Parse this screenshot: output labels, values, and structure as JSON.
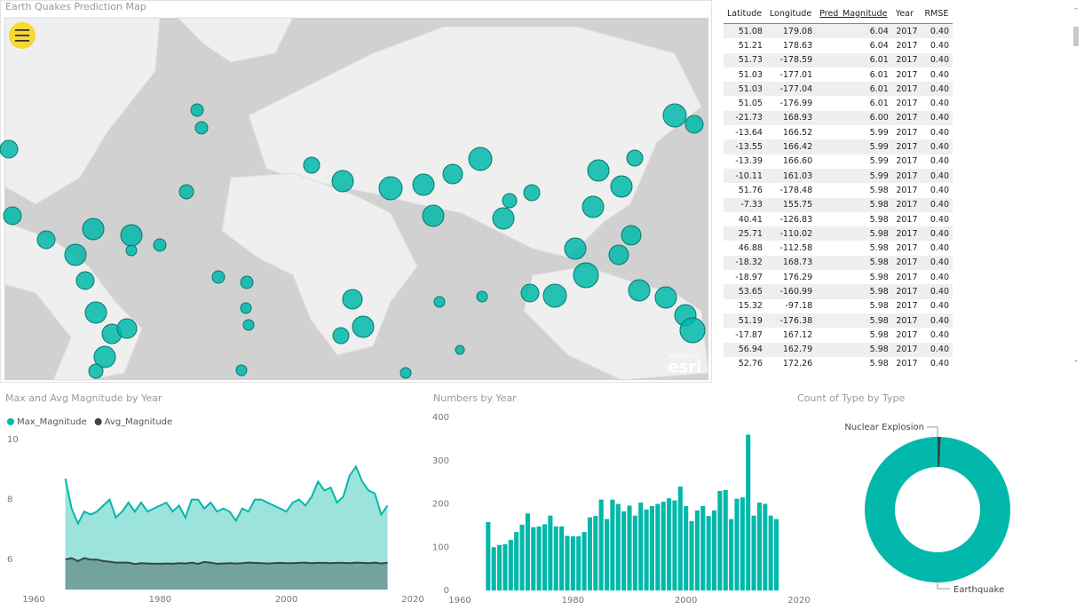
{
  "map": {
    "title": "Earth Quakes Prediction Map",
    "logo_caption": "POWERED BY",
    "logo": "esri"
  },
  "table": {
    "columns": [
      "Latitude",
      "Longitude",
      "Pred_Magnitude",
      "Year",
      "RMSE"
    ],
    "rows": [
      [
        "51.08",
        "179.08",
        "6.04",
        "2017",
        "0.40"
      ],
      [
        "51.21",
        "178.63",
        "6.04",
        "2017",
        "0.40"
      ],
      [
        "51.73",
        "-178.59",
        "6.01",
        "2017",
        "0.40"
      ],
      [
        "51.03",
        "-177.01",
        "6.01",
        "2017",
        "0.40"
      ],
      [
        "51.03",
        "-177.04",
        "6.01",
        "2017",
        "0.40"
      ],
      [
        "51.05",
        "-176.99",
        "6.01",
        "2017",
        "0.40"
      ],
      [
        "-21.73",
        "168.93",
        "6.00",
        "2017",
        "0.40"
      ],
      [
        "-13.64",
        "166.52",
        "5.99",
        "2017",
        "0.40"
      ],
      [
        "-13.55",
        "166.42",
        "5.99",
        "2017",
        "0.40"
      ],
      [
        "-13.39",
        "166.60",
        "5.99",
        "2017",
        "0.40"
      ],
      [
        "-10.11",
        "161.03",
        "5.99",
        "2017",
        "0.40"
      ],
      [
        "51.76",
        "-178.48",
        "5.98",
        "2017",
        "0.40"
      ],
      [
        "-7.33",
        "155.75",
        "5.98",
        "2017",
        "0.40"
      ],
      [
        "40.41",
        "-126.83",
        "5.98",
        "2017",
        "0.40"
      ],
      [
        "25.71",
        "-110.02",
        "5.98",
        "2017",
        "0.40"
      ],
      [
        "46.88",
        "-112.58",
        "5.98",
        "2017",
        "0.40"
      ],
      [
        "-18.32",
        "168.73",
        "5.98",
        "2017",
        "0.40"
      ],
      [
        "-18.97",
        "176.29",
        "5.98",
        "2017",
        "0.40"
      ],
      [
        "53.65",
        "-160.99",
        "5.98",
        "2017",
        "0.40"
      ],
      [
        "15.32",
        "-97.18",
        "5.98",
        "2017",
        "0.40"
      ],
      [
        "51.19",
        "-176.38",
        "5.98",
        "2017",
        "0.40"
      ],
      [
        "-17.87",
        "167.12",
        "5.98",
        "2017",
        "0.40"
      ],
      [
        "56.94",
        "162.79",
        "5.98",
        "2017",
        "0.40"
      ],
      [
        "52.76",
        "172.26",
        "5.98",
        "2017",
        "0.40"
      ]
    ]
  },
  "chart_data": [
    {
      "type": "area",
      "title": "Max and Avg Magnitude by Year",
      "x": [
        1965,
        1966,
        1967,
        1968,
        1969,
        1970,
        1971,
        1972,
        1973,
        1974,
        1975,
        1976,
        1977,
        1978,
        1979,
        1980,
        1981,
        1982,
        1983,
        1984,
        1985,
        1986,
        1987,
        1988,
        1989,
        1990,
        1991,
        1992,
        1993,
        1994,
        1995,
        1996,
        1997,
        1998,
        1999,
        2000,
        2001,
        2002,
        2003,
        2004,
        2005,
        2006,
        2007,
        2008,
        2009,
        2010,
        2011,
        2012,
        2013,
        2014,
        2015,
        2016
      ],
      "series": [
        {
          "name": "Max_Magnitude",
          "color": "#01b8aa",
          "fill": "#9ce3dc",
          "values": [
            8.7,
            7.7,
            7.2,
            7.6,
            7.5,
            7.6,
            7.8,
            8.0,
            7.4,
            7.6,
            7.9,
            7.6,
            7.9,
            7.6,
            7.7,
            7.8,
            7.9,
            7.6,
            7.8,
            7.4,
            8.0,
            8.0,
            7.7,
            7.9,
            7.6,
            7.7,
            7.6,
            7.3,
            7.7,
            7.6,
            8.0,
            8.0,
            7.9,
            7.8,
            7.7,
            7.6,
            7.9,
            8.0,
            7.8,
            8.1,
            8.6,
            8.3,
            8.4,
            7.9,
            8.1,
            8.8,
            9.1,
            8.6,
            8.3,
            8.2,
            7.5,
            7.8
          ]
        },
        {
          "name": "Avg_Magnitude",
          "color": "#374649",
          "fill": "#72a39e",
          "values": [
            6.0,
            6.05,
            5.95,
            6.05,
            6.0,
            6.0,
            5.95,
            5.93,
            5.9,
            5.9,
            5.9,
            5.85,
            5.88,
            5.87,
            5.86,
            5.86,
            5.87,
            5.86,
            5.88,
            5.87,
            5.9,
            5.86,
            5.92,
            5.9,
            5.86,
            5.87,
            5.88,
            5.87,
            5.88,
            5.9,
            5.89,
            5.88,
            5.87,
            5.88,
            5.89,
            5.88,
            5.88,
            5.89,
            5.9,
            5.88,
            5.89,
            5.89,
            5.88,
            5.89,
            5.89,
            5.88,
            5.9,
            5.89,
            5.88,
            5.9,
            5.87,
            5.9
          ]
        }
      ],
      "xlim": [
        1960,
        2020
      ],
      "xticks": [
        1960,
        1980,
        2000,
        2020
      ],
      "ylim": [
        5,
        10
      ],
      "yticks": [
        6,
        8,
        10
      ],
      "legend": "top-left",
      "grid": false
    },
    {
      "type": "bar",
      "title": "Numbers by Year",
      "x": [
        1965,
        1966,
        1967,
        1968,
        1969,
        1970,
        1971,
        1972,
        1973,
        1974,
        1975,
        1976,
        1977,
        1978,
        1979,
        1980,
        1981,
        1982,
        1983,
        1984,
        1985,
        1986,
        1987,
        1988,
        1989,
        1990,
        1991,
        1992,
        1993,
        1994,
        1995,
        1996,
        1997,
        1998,
        1999,
        2000,
        2001,
        2002,
        2003,
        2004,
        2005,
        2006,
        2007,
        2008,
        2009,
        2010,
        2011,
        2012,
        2013,
        2014,
        2015,
        2016
      ],
      "values": [
        158,
        100,
        105,
        107,
        117,
        135,
        152,
        178,
        146,
        148,
        153,
        173,
        148,
        148,
        126,
        125,
        125,
        135,
        169,
        172,
        210,
        165,
        210,
        200,
        183,
        196,
        173,
        203,
        187,
        195,
        200,
        205,
        213,
        208,
        240,
        195,
        160,
        185,
        195,
        172,
        185,
        230,
        232,
        165,
        212,
        215,
        360,
        173,
        203,
        200,
        173,
        165
      ],
      "color": "#01b8aa",
      "xlim": [
        1960,
        2020
      ],
      "xticks": [
        1960,
        1980,
        2000,
        2020
      ],
      "ylim": [
        0,
        400
      ],
      "yticks": [
        0,
        100,
        200,
        300,
        400
      ],
      "grid": false
    },
    {
      "type": "donut",
      "title": "Count of Type by Type",
      "categories": [
        "Nuclear Explosion",
        "Earthquake"
      ],
      "values": [
        175,
        23232
      ],
      "colors": [
        "#374649",
        "#01b8aa"
      ]
    }
  ]
}
